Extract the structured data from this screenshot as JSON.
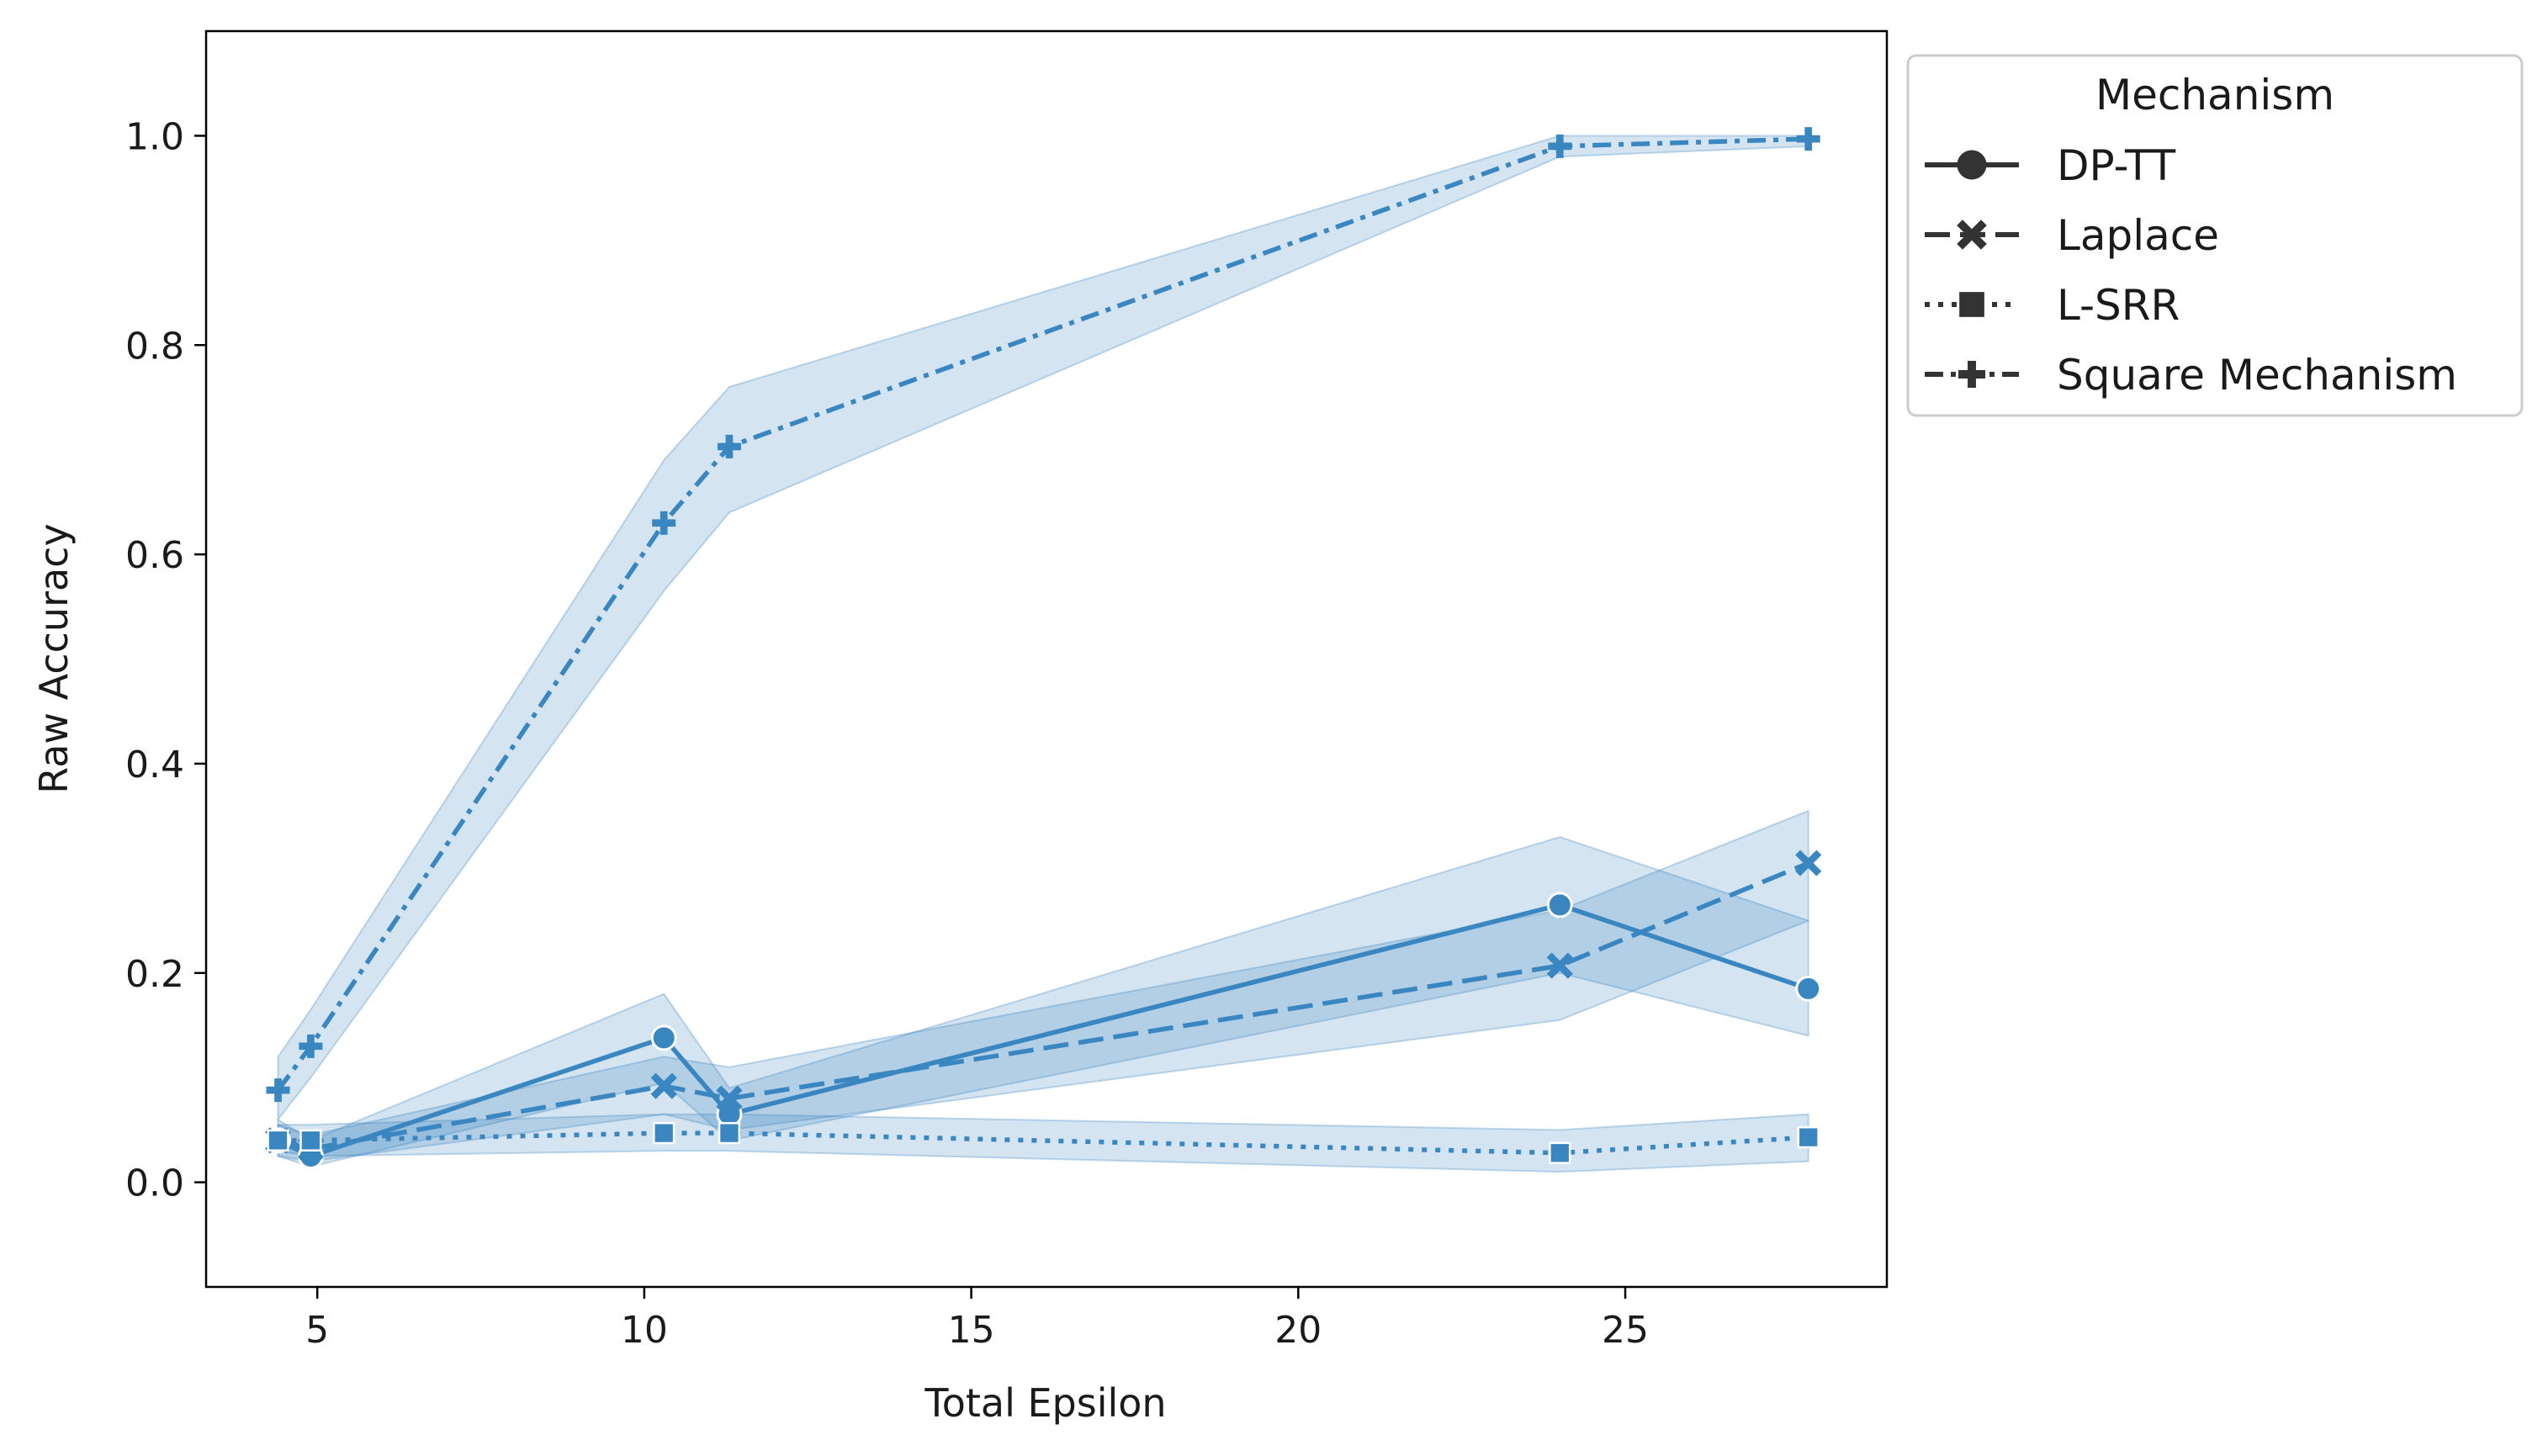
{
  "chart_data": {
    "type": "line",
    "title": "",
    "xlabel": "Total Epsilon",
    "ylabel": "Raw Accuracy",
    "xlim": [
      3.3,
      29.0
    ],
    "ylim": [
      -0.1,
      1.1
    ],
    "xticks": [
      5,
      10,
      15,
      20,
      25
    ],
    "yticks": [
      0.0,
      0.2,
      0.4,
      0.6,
      0.8,
      1.0
    ],
    "xtick_labels": [
      "5",
      "10",
      "15",
      "20",
      "25"
    ],
    "ytick_labels": [
      "0.0",
      "0.2",
      "0.4",
      "0.6",
      "0.8",
      "1.0"
    ],
    "grid": false,
    "legend": {
      "title": "Mechanism",
      "placement": "outside-top-right",
      "entries": [
        "DP-TT",
        "Laplace",
        "L-SRR",
        "Square Mechanism"
      ]
    },
    "color": "#3a86c0",
    "band_color": "#3a86c0",
    "series": [
      {
        "name": "DP-TT",
        "linestyle": "solid",
        "marker": "circle",
        "x": [
          4.4,
          4.9,
          10.3,
          11.3,
          24.0,
          27.8
        ],
        "y": [
          0.04,
          0.025,
          0.138,
          0.065,
          0.265,
          0.185
        ],
        "lower": [
          0.025,
          0.015,
          0.095,
          0.04,
          0.2,
          0.14
        ],
        "upper": [
          0.06,
          0.04,
          0.18,
          0.09,
          0.33,
          0.25
        ]
      },
      {
        "name": "Laplace",
        "linestyle": "dashed",
        "marker": "x",
        "x": [
          4.4,
          4.9,
          10.3,
          11.3,
          24.0,
          27.8
        ],
        "y": [
          0.04,
          0.032,
          0.092,
          0.08,
          0.207,
          0.305
        ],
        "lower": [
          0.025,
          0.02,
          0.065,
          0.05,
          0.155,
          0.25
        ],
        "upper": [
          0.055,
          0.045,
          0.12,
          0.11,
          0.26,
          0.355
        ]
      },
      {
        "name": "L-SRR",
        "linestyle": "dotted",
        "marker": "square",
        "x": [
          4.4,
          4.9,
          10.3,
          11.3,
          24.0,
          27.8
        ],
        "y": [
          0.04,
          0.04,
          0.047,
          0.047,
          0.028,
          0.043
        ],
        "lower": [
          0.03,
          0.025,
          0.03,
          0.03,
          0.01,
          0.02
        ],
        "upper": [
          0.055,
          0.055,
          0.065,
          0.065,
          0.05,
          0.065
        ]
      },
      {
        "name": "Square Mechanism",
        "linestyle": "dashdot",
        "marker": "plus",
        "x": [
          4.4,
          4.9,
          10.3,
          11.3,
          24.0,
          27.8
        ],
        "y": [
          0.088,
          0.13,
          0.63,
          0.703,
          0.99,
          0.997
        ],
        "lower": [
          0.06,
          0.1,
          0.565,
          0.64,
          0.98,
          0.99
        ],
        "upper": [
          0.12,
          0.165,
          0.69,
          0.76,
          1.0,
          1.0
        ]
      }
    ]
  }
}
